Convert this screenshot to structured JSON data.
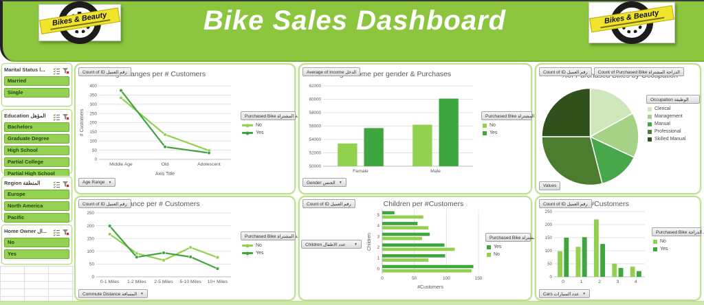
{
  "header": {
    "title": "Bike Sales Dashboard",
    "brand": "Bikes & Beauty"
  },
  "colors": {
    "banner": "#8cc63e",
    "series_no": "#92d04f",
    "series_yes": "#3fa53f",
    "panel_border": "#bfe093",
    "grid": "#d9d9d9",
    "axis": "#bfbfbf",
    "tick_text": "#595959",
    "pie": [
      "#cfe7bb",
      "#a6d285",
      "#48a74a",
      "#4c7d2f",
      "#31511c"
    ]
  },
  "slicers": [
    {
      "id": "marital-status",
      "title": "Marital Status ا...",
      "items": [
        "Married",
        "Single"
      ],
      "height": 63
    },
    {
      "id": "education",
      "title": "Education المؤهل",
      "items": [
        "Bachelors",
        "Graduate Degree",
        "High School",
        "Partial College",
        "Partial High School"
      ],
      "height": 94
    },
    {
      "id": "region",
      "title": "Region المنطقة",
      "items": [
        "Europe",
        "North America",
        "Pacific"
      ],
      "height": 66
    },
    {
      "id": "home-owner",
      "title": "Home Owner ال...",
      "items": [
        "No",
        "Yes"
      ],
      "height": 58
    }
  ],
  "panels": [
    {
      "chart": "age",
      "value_buttons": [
        "Count of ID رقم العميل"
      ],
      "axis_button": "Age Range",
      "legend_button": "Purchased Bike الدراجة المشتراة",
      "legend_glyph": "line",
      "legend": [
        {
          "label": "No",
          "color_key": "no"
        },
        {
          "label": "Yes",
          "color_key": "yes"
        }
      ]
    },
    {
      "chart": "income",
      "value_buttons": [
        "Average of Income الدخل"
      ],
      "axis_button": "Gender الجنس",
      "legend_button": "Purchased Bike الدراجة المشتراة",
      "legend_glyph": "square",
      "legend": [
        {
          "label": "No",
          "color_key": "no"
        },
        {
          "label": "Yes",
          "color_key": "yes"
        }
      ]
    },
    {
      "chart": "occupation",
      "value_buttons": [
        "Count of ID رقم العميل",
        "Count of Purchased Bike الدراجة المشتراة"
      ],
      "values_button": "Values",
      "legend_button": "Occupation الوظيفة",
      "legend_glyph": "square",
      "legend": [
        {
          "label": "Clerical",
          "color_key": "pie0"
        },
        {
          "label": "Management",
          "color_key": "pie1"
        },
        {
          "label": "Manual",
          "color_key": "pie2"
        },
        {
          "label": "Professional",
          "color_key": "pie3"
        },
        {
          "label": "Skilled Manual",
          "color_key": "pie4"
        }
      ]
    },
    {
      "chart": "distance",
      "value_buttons": [
        "Count of ID رقم العميل"
      ],
      "axis_button": "Commute Distance المسافة",
      "legend_button": "Purchased Bike الدراجة المشتراة",
      "legend_glyph": "line",
      "legend": [
        {
          "label": "No",
          "color_key": "no"
        },
        {
          "label": "Yes",
          "color_key": "yes"
        }
      ]
    },
    {
      "chart": "children",
      "value_buttons": [
        "Count of ID رقم العميل"
      ],
      "axis_button": "Children عدد الاطفال",
      "legend_button": "Purchased Bike الدراجة المشتراة",
      "legend_glyph": "square",
      "legend": [
        {
          "label": "Yes",
          "color_key": "yes"
        },
        {
          "label": "No",
          "color_key": "no"
        }
      ]
    },
    {
      "chart": "cars",
      "value_buttons": [
        "Count of ID رقم العميل"
      ],
      "axis_button": "Cars عدد السيارات",
      "legend_button": "Purchased Bike الدراجة...",
      "legend_glyph": "square",
      "legend": [
        {
          "label": "No",
          "color_key": "no"
        },
        {
          "label": "Yes",
          "color_key": "yes"
        }
      ]
    }
  ],
  "chart_data": [
    {
      "id": "age",
      "type": "line",
      "title": "Age Ranges per # Customers",
      "categories": [
        "Middle Age",
        "Old",
        "Adolescent"
      ],
      "series": [
        {
          "name": "No",
          "color_key": "no",
          "values": [
            335,
            135,
            48
          ]
        },
        {
          "name": "Yes",
          "color_key": "yes",
          "values": [
            375,
            68,
            35
          ]
        }
      ],
      "xlabel": "Axis Title",
      "ylabel": "# Customers",
      "ylim": [
        0,
        400
      ],
      "ystep": 50,
      "grid": true,
      "legend_position": "right"
    },
    {
      "id": "income",
      "type": "bar",
      "title": "Avg. Income per gender & Purchases",
      "categories": [
        "Female",
        "Male"
      ],
      "series": [
        {
          "name": "No",
          "color_key": "no",
          "values": [
            53400,
            56200
          ]
        },
        {
          "name": "Yes",
          "color_key": "yes",
          "values": [
            55700,
            60100
          ]
        }
      ],
      "xlabel": "",
      "ylabel": "",
      "ylim": [
        50000,
        62000
      ],
      "ystep": 2000,
      "grid": true,
      "legend_position": "right"
    },
    {
      "id": "occupation",
      "type": "pie",
      "title": "%of Purchased Bikes by Occupation",
      "labels": [
        "Clerical",
        "Management",
        "Manual",
        "Professional",
        "Skilled Manual"
      ],
      "values": [
        17,
        15,
        14,
        29,
        25
      ],
      "unit": "percent",
      "legend_position": "right"
    },
    {
      "id": "distance",
      "type": "line",
      "title": "Distance per # Customers",
      "categories": [
        "0-1 Miles",
        "1-2 Miles",
        "2-5 Miles",
        "5-10 Miles",
        "10+ Miles"
      ],
      "series": [
        {
          "name": "No",
          "color_key": "no",
          "values": [
            167,
            92,
            65,
            115,
            76
          ]
        },
        {
          "name": "Yes",
          "color_key": "yes",
          "values": [
            199,
            77,
            94,
            78,
            32
          ]
        }
      ],
      "xlabel": "",
      "ylabel": "",
      "ylim": [
        0,
        250
      ],
      "ystep": 50,
      "grid": true,
      "legend_position": "right"
    },
    {
      "id": "children",
      "type": "hbar",
      "title": "Children per #Customers",
      "categories": [
        "0",
        "1",
        "2",
        "3",
        "4",
        "5"
      ],
      "series": [
        {
          "name": "Yes",
          "color_key": "yes",
          "values": [
            142,
            98,
            97,
            74,
            55,
            19
          ]
        },
        {
          "name": "No",
          "color_key": "no",
          "values": [
            139,
            72,
            113,
            62,
            72,
            64
          ]
        }
      ],
      "xlabel": "#Customers",
      "ylabel": "Children",
      "xlim": [
        0,
        150
      ],
      "xstep": 50,
      "grid": true,
      "legend_position": "right"
    },
    {
      "id": "cars",
      "type": "bar",
      "title": "Cars per #Customers",
      "categories": [
        "0",
        "1",
        "2",
        "3",
        "4"
      ],
      "series": [
        {
          "name": "No",
          "color_key": "no",
          "values": [
            98,
            115,
            220,
            51,
            39
          ]
        },
        {
          "name": "Yes",
          "color_key": "yes",
          "values": [
            150,
            152,
            126,
            34,
            22
          ]
        }
      ],
      "xlabel": "",
      "ylabel": "",
      "ylim": [
        0,
        250
      ],
      "ystep": 50,
      "grid": true,
      "legend_position": "right"
    }
  ]
}
